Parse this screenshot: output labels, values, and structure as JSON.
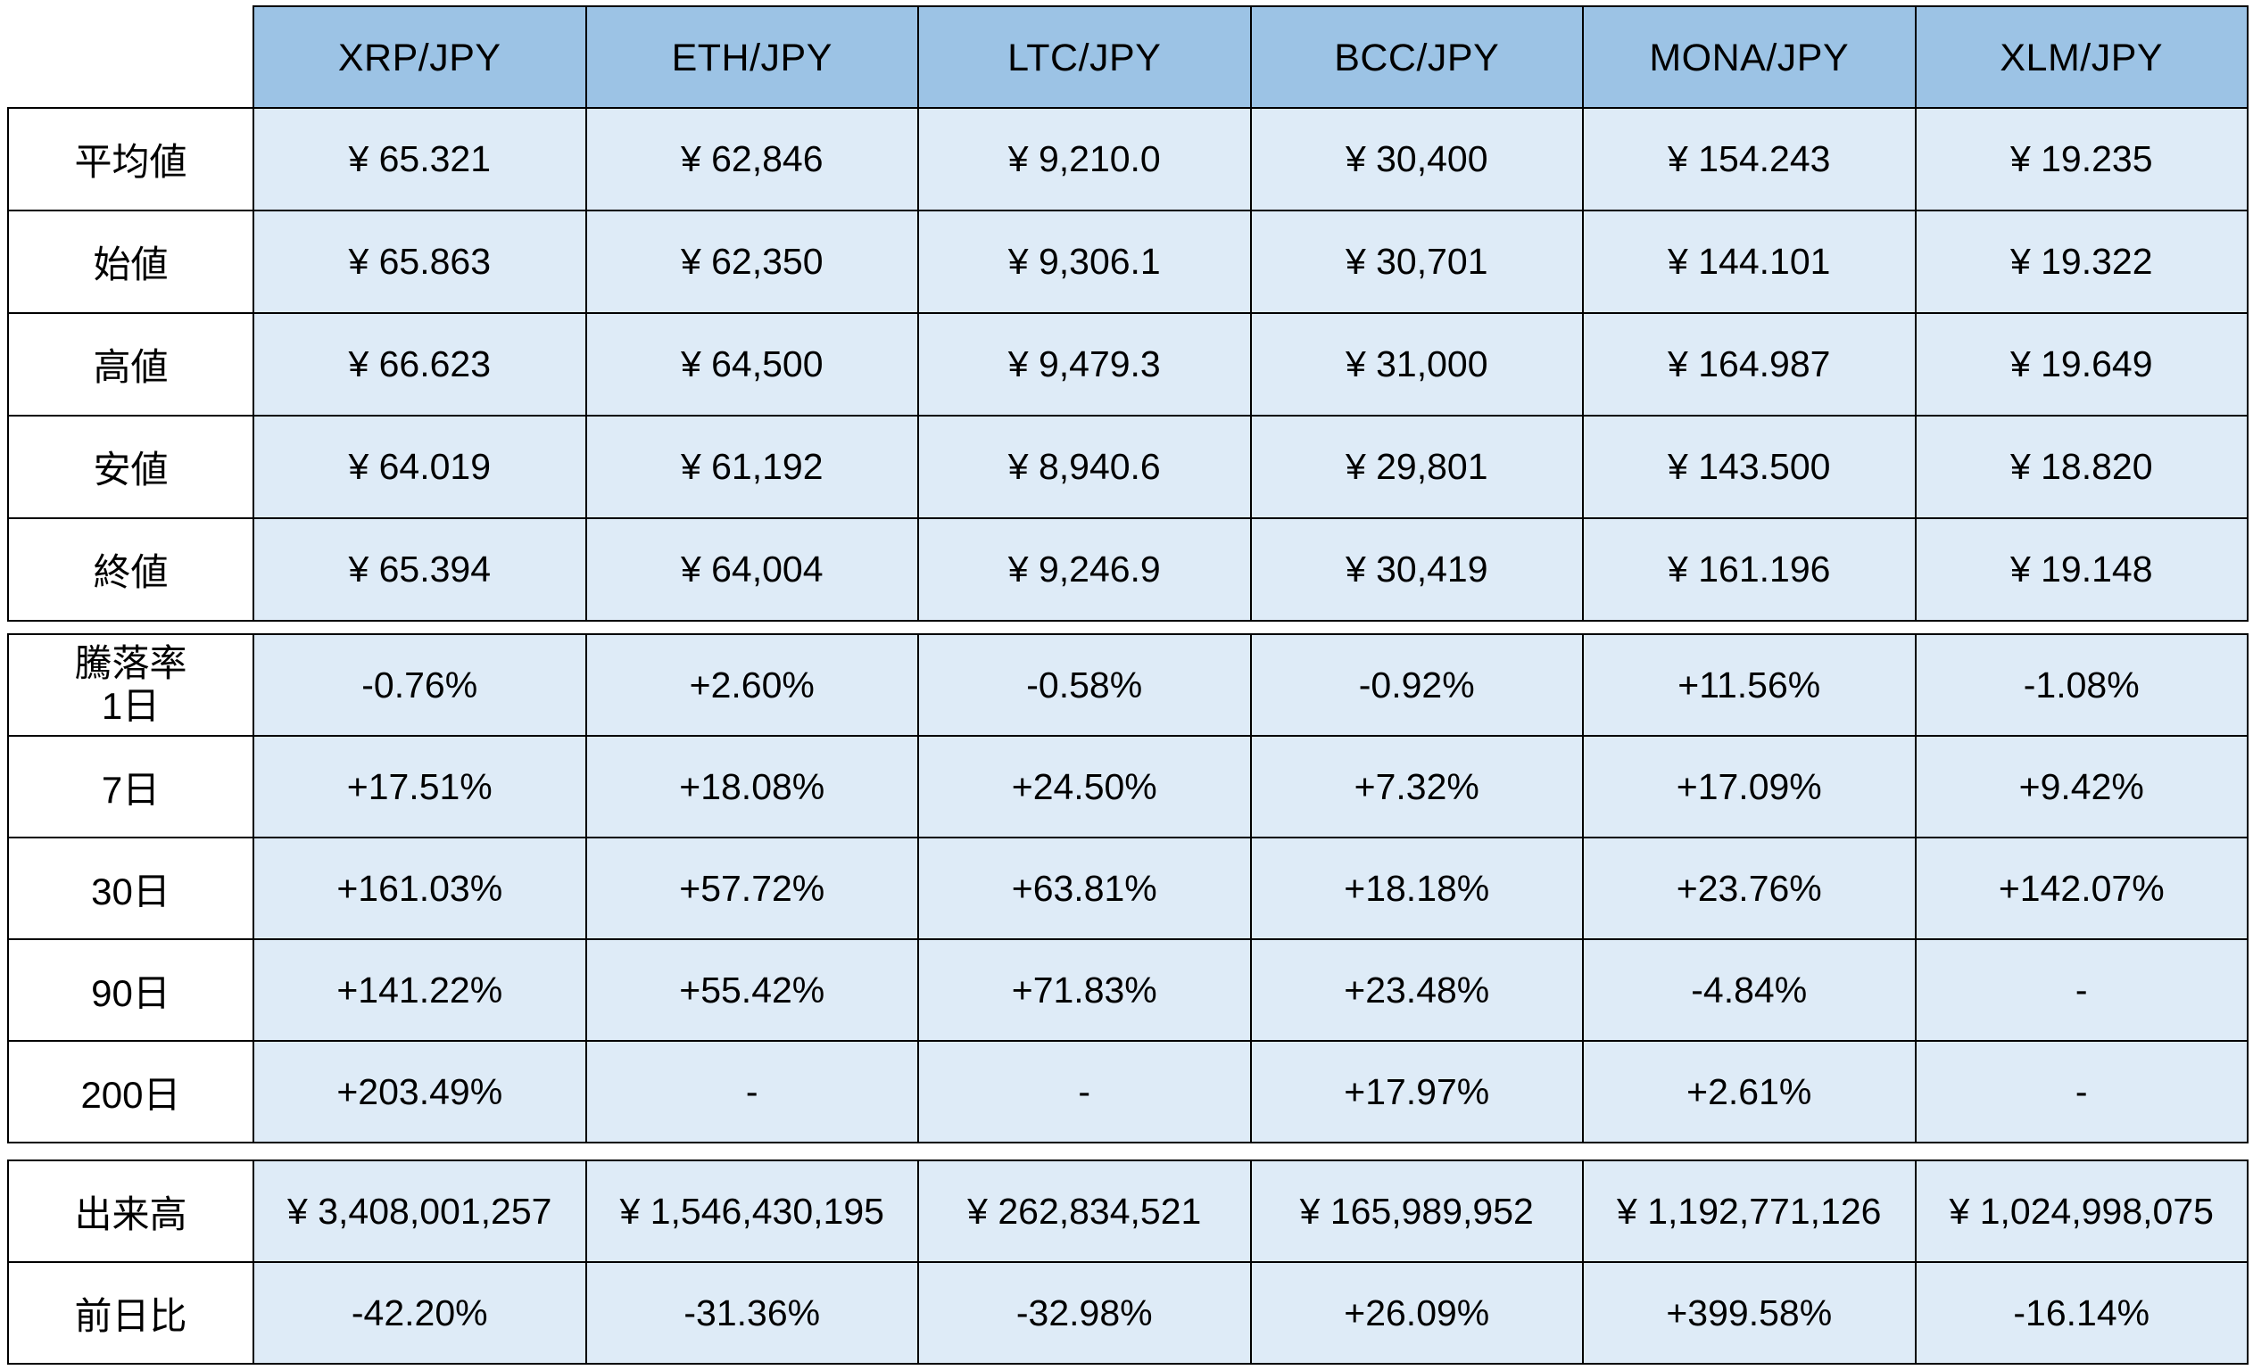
{
  "colors": {
    "header_bg": "#9cc3e5",
    "cell_bg": "#deebf7",
    "label_bg": "#ffffff",
    "border": "#000000",
    "text": "#000000"
  },
  "chart_data": {
    "type": "table",
    "columns": [
      "XRP/JPY",
      "ETH/JPY",
      "LTC/JPY",
      "BCC/JPY",
      "MONA/JPY",
      "XLM/JPY"
    ],
    "sections": [
      {
        "name": "prices",
        "rows": [
          {
            "label": "平均値",
            "values": [
              "¥ 65.321",
              "¥ 62,846",
              "¥ 9,210.0",
              "¥ 30,400",
              "¥ 154.243",
              "¥ 19.235"
            ]
          },
          {
            "label": "始値",
            "values": [
              "¥ 65.863",
              "¥ 62,350",
              "¥ 9,306.1",
              "¥ 30,701",
              "¥ 144.101",
              "¥ 19.322"
            ]
          },
          {
            "label": "高値",
            "values": [
              "¥ 66.623",
              "¥ 64,500",
              "¥ 9,479.3",
              "¥ 31,000",
              "¥ 164.987",
              "¥ 19.649"
            ]
          },
          {
            "label": "安値",
            "values": [
              "¥ 64.019",
              "¥ 61,192",
              "¥ 8,940.6",
              "¥ 29,801",
              "¥ 143.500",
              "¥ 18.820"
            ]
          },
          {
            "label": "終値",
            "values": [
              "¥ 65.394",
              "¥ 64,004",
              "¥ 9,246.9",
              "¥ 30,419",
              "¥ 161.196",
              "¥ 19.148"
            ]
          }
        ]
      },
      {
        "name": "change_rates",
        "rows": [
          {
            "label_lines": [
              "騰落率",
              "1日"
            ],
            "values": [
              "-0.76%",
              "+2.60%",
              "-0.58%",
              "-0.92%",
              "+11.56%",
              "-1.08%"
            ]
          },
          {
            "label": "7日",
            "values": [
              "+17.51%",
              "+18.08%",
              "+24.50%",
              "+7.32%",
              "+17.09%",
              "+9.42%"
            ]
          },
          {
            "label": "30日",
            "values": [
              "+161.03%",
              "+57.72%",
              "+63.81%",
              "+18.18%",
              "+23.76%",
              "+142.07%"
            ]
          },
          {
            "label": "90日",
            "values": [
              "+141.22%",
              "+55.42%",
              "+71.83%",
              "+23.48%",
              "-4.84%",
              "-"
            ]
          },
          {
            "label": "200日",
            "values": [
              "+203.49%",
              "-",
              "-",
              "+17.97%",
              "+2.61%",
              "-"
            ]
          }
        ]
      },
      {
        "name": "volume",
        "rows": [
          {
            "label": "出来高",
            "values": [
              "¥ 3,408,001,257",
              "¥ 1,546,430,195",
              "¥ 262,834,521",
              "¥ 165,989,952",
              "¥ 1,192,771,126",
              "¥ 1,024,998,075"
            ]
          },
          {
            "label": "前日比",
            "values": [
              "-42.20%",
              "-31.36%",
              "-32.98%",
              "+26.09%",
              "+399.58%",
              "-16.14%"
            ]
          }
        ]
      }
    ]
  }
}
